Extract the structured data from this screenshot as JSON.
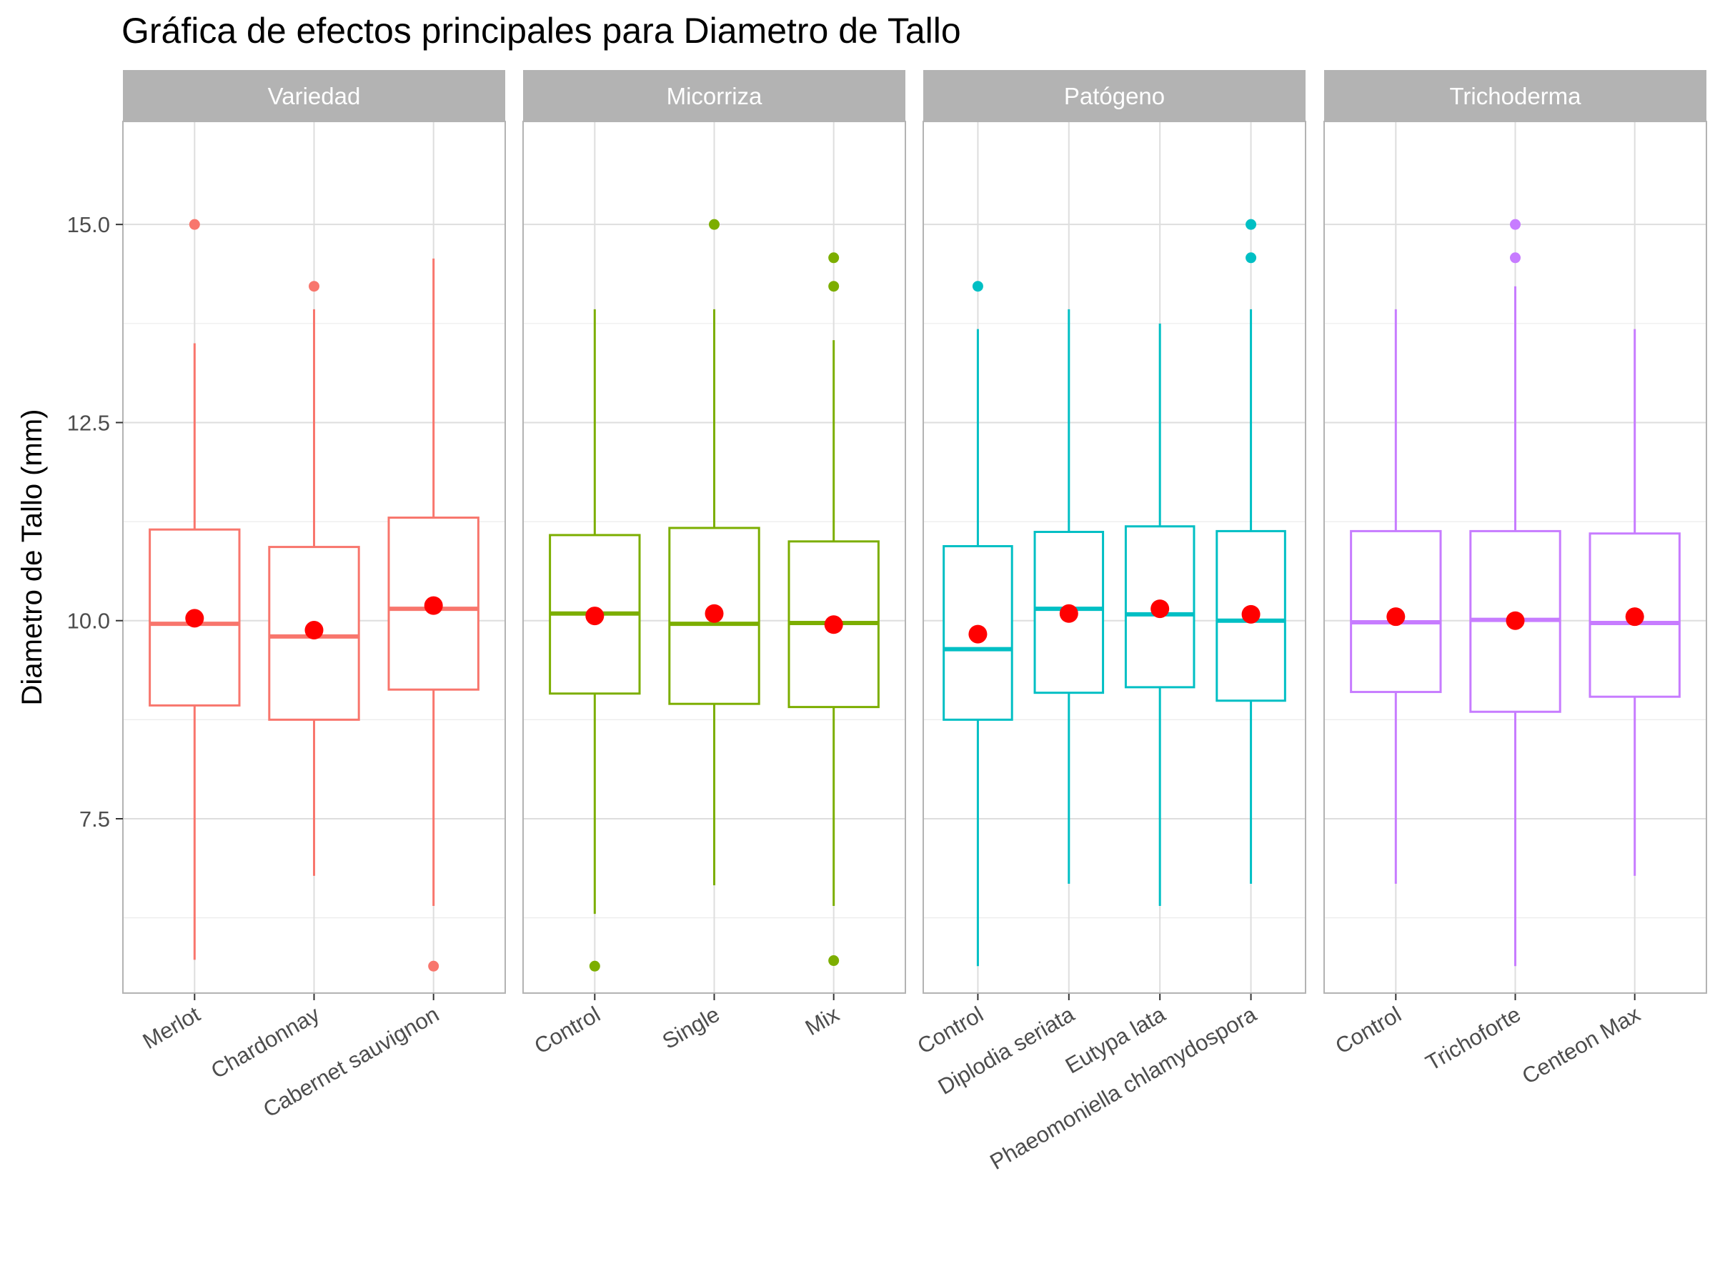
{
  "chart_data": {
    "type": "boxplot",
    "title": "Gráfica de efectos principales para Diametro de Tallo",
    "ylabel": "Diametro de Tallo (mm)",
    "xlabel": "",
    "ylim": [
      5.3,
      16.3
    ],
    "yticks": [
      7.5,
      10.0,
      12.5,
      15.0
    ],
    "ytick_labels": [
      "7.5",
      "10.0",
      "12.5",
      "15.0"
    ],
    "grid": true,
    "mean_color": "#ff0000",
    "panels": [
      {
        "name": "Variedad",
        "color": "#f8766d",
        "groups": [
          {
            "label": "Merlot",
            "q1": 8.93,
            "median": 9.96,
            "q3": 11.15,
            "whisker_low": 5.72,
            "whisker_high": 13.5,
            "mean": 10.03,
            "outliers": [
              15.0
            ]
          },
          {
            "label": "Chardonnay",
            "q1": 8.75,
            "median": 9.8,
            "q3": 10.93,
            "whisker_low": 6.78,
            "whisker_high": 13.93,
            "mean": 9.88,
            "outliers": [
              14.22
            ]
          },
          {
            "label": "Cabernet sauvignon",
            "q1": 9.13,
            "median": 10.15,
            "q3": 11.3,
            "whisker_low": 6.4,
            "whisker_high": 14.57,
            "mean": 10.19,
            "outliers": [
              5.64
            ]
          }
        ]
      },
      {
        "name": "Micorriza",
        "color": "#7cae00",
        "groups": [
          {
            "label": "Control",
            "q1": 9.08,
            "median": 10.09,
            "q3": 11.08,
            "whisker_low": 6.3,
            "whisker_high": 13.93,
            "mean": 10.06,
            "outliers": [
              5.64
            ]
          },
          {
            "label": "Single",
            "q1": 8.95,
            "median": 9.96,
            "q3": 11.17,
            "whisker_low": 6.66,
            "whisker_high": 13.93,
            "mean": 10.09,
            "outliers": [
              15.0
            ]
          },
          {
            "label": "Mix",
            "q1": 8.91,
            "median": 9.97,
            "q3": 11.0,
            "whisker_low": 6.4,
            "whisker_high": 13.54,
            "mean": 9.95,
            "outliers": [
              5.71,
              14.22,
              14.58
            ]
          }
        ]
      },
      {
        "name": "Patógeno",
        "color": "#00bfc4",
        "groups": [
          {
            "label": "Control",
            "q1": 8.75,
            "median": 9.64,
            "q3": 10.94,
            "whisker_low": 5.64,
            "whisker_high": 13.68,
            "mean": 9.83,
            "outliers": [
              14.22
            ]
          },
          {
            "label": "Diplodia seriata",
            "q1": 9.09,
            "median": 10.15,
            "q3": 11.12,
            "whisker_low": 6.68,
            "whisker_high": 13.93,
            "mean": 10.09,
            "outliers": []
          },
          {
            "label": "Eutypa lata",
            "q1": 9.16,
            "median": 10.08,
            "q3": 11.19,
            "whisker_low": 6.4,
            "whisker_high": 13.75,
            "mean": 10.15,
            "outliers": []
          },
          {
            "label": "Phaeomoniella chlamydospora",
            "q1": 8.99,
            "median": 10.0,
            "q3": 11.13,
            "whisker_low": 6.68,
            "whisker_high": 13.93,
            "mean": 10.08,
            "outliers": [
              14.58,
              15.0
            ]
          }
        ]
      },
      {
        "name": "Trichoderma",
        "color": "#c77cff",
        "groups": [
          {
            "label": "Control",
            "q1": 9.1,
            "median": 9.98,
            "q3": 11.13,
            "whisker_low": 6.68,
            "whisker_high": 13.93,
            "mean": 10.05,
            "outliers": []
          },
          {
            "label": "Trichoforte",
            "q1": 8.85,
            "median": 10.01,
            "q3": 11.13,
            "whisker_low": 5.64,
            "whisker_high": 14.22,
            "mean": 10.0,
            "outliers": [
              14.58,
              15.0
            ]
          },
          {
            "label": "Centeon Max",
            "q1": 9.04,
            "median": 9.97,
            "q3": 11.1,
            "whisker_low": 6.78,
            "whisker_high": 13.68,
            "mean": 10.05,
            "outliers": []
          }
        ]
      }
    ]
  }
}
